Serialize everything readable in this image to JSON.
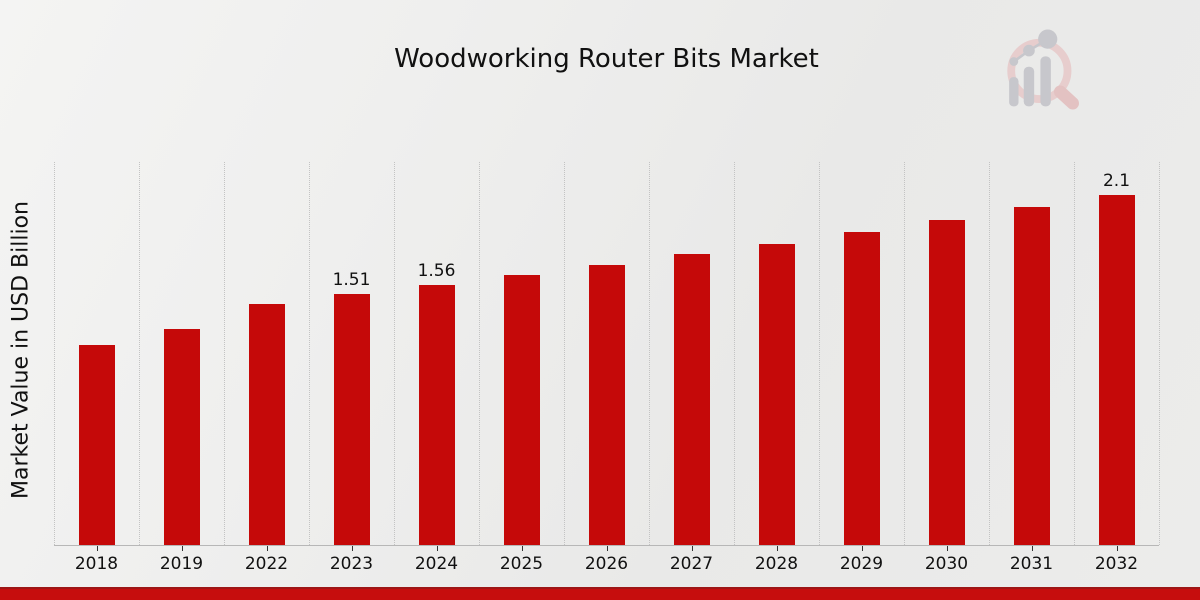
{
  "title": "Woodworking Router Bits Market",
  "ylabel": "Market Value in USD Billion",
  "footer": {
    "accent_color": "#c60d0d"
  },
  "logo": {
    "name": "magnifier-growth-chart-watermark"
  },
  "chart_data": {
    "type": "bar",
    "title": "Woodworking Router Bits Market",
    "xlabel": "",
    "ylabel": "Market Value in USD Billion",
    "categories": [
      "2018",
      "2019",
      "2022",
      "2023",
      "2024",
      "2025",
      "2026",
      "2027",
      "2028",
      "2029",
      "2030",
      "2031",
      "2032"
    ],
    "values": [
      1.2,
      1.3,
      1.45,
      1.51,
      1.56,
      1.62,
      1.68,
      1.75,
      1.81,
      1.88,
      1.95,
      2.03,
      2.1
    ],
    "bar_labels": {
      "2023": "1.51",
      "2024": "1.56",
      "2032": "2.1"
    },
    "bar_color": "#c50909",
    "ylim": [
      0,
      2.3
    ],
    "grid": "vertical-dotted",
    "legend": "none"
  }
}
